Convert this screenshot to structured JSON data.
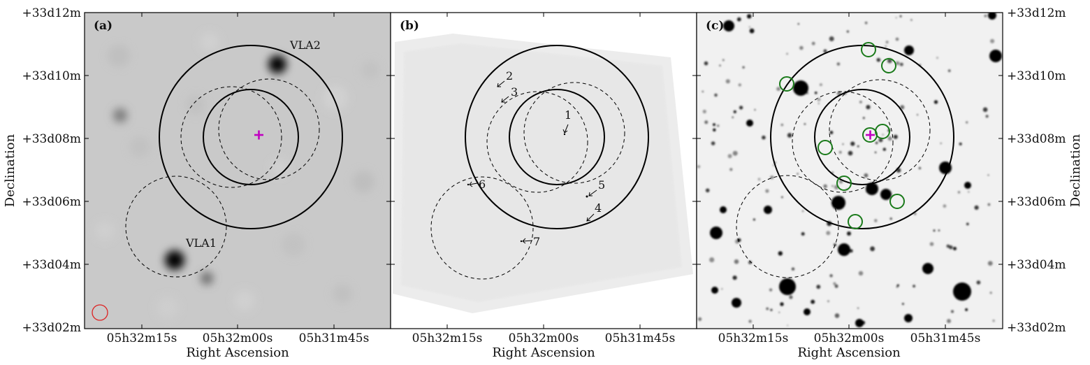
{
  "figure": {
    "panels": [
      {
        "label": "(a)",
        "xlabel": "Right Ascension",
        "ylabel": "Declination",
        "x_ticks": [
          "05h32m15s",
          "05h32m00s",
          "05h31m45s"
        ],
        "y_ticks": [
          "+33d12m",
          "+33d10m",
          "+33d08m",
          "+33d06m",
          "+33d04m",
          "+33d02m"
        ],
        "sources": [
          "VLA2",
          "VLA1"
        ]
      },
      {
        "label": "(b)",
        "xlabel": "Right Ascension",
        "x_ticks": [
          "05h32m15s",
          "05h32m00s",
          "05h31m45s"
        ],
        "sources": [
          "1",
          "2",
          "3",
          "4",
          "5",
          "6",
          "7"
        ]
      },
      {
        "label": "(c)",
        "xlabel": "Right Ascension",
        "ylabel": "Declination",
        "x_ticks": [
          "05h32m15s",
          "05h32m00s",
          "05h31m45s"
        ],
        "y_ticks": [
          "+33d12m",
          "+33d10m",
          "+33d08m",
          "+33d06m",
          "+33d04m",
          "+33d02m"
        ]
      }
    ],
    "colors": {
      "marker": "#c000c0",
      "beam": "#dd2222",
      "counterpart_circle": "#1a7a1a"
    }
  }
}
